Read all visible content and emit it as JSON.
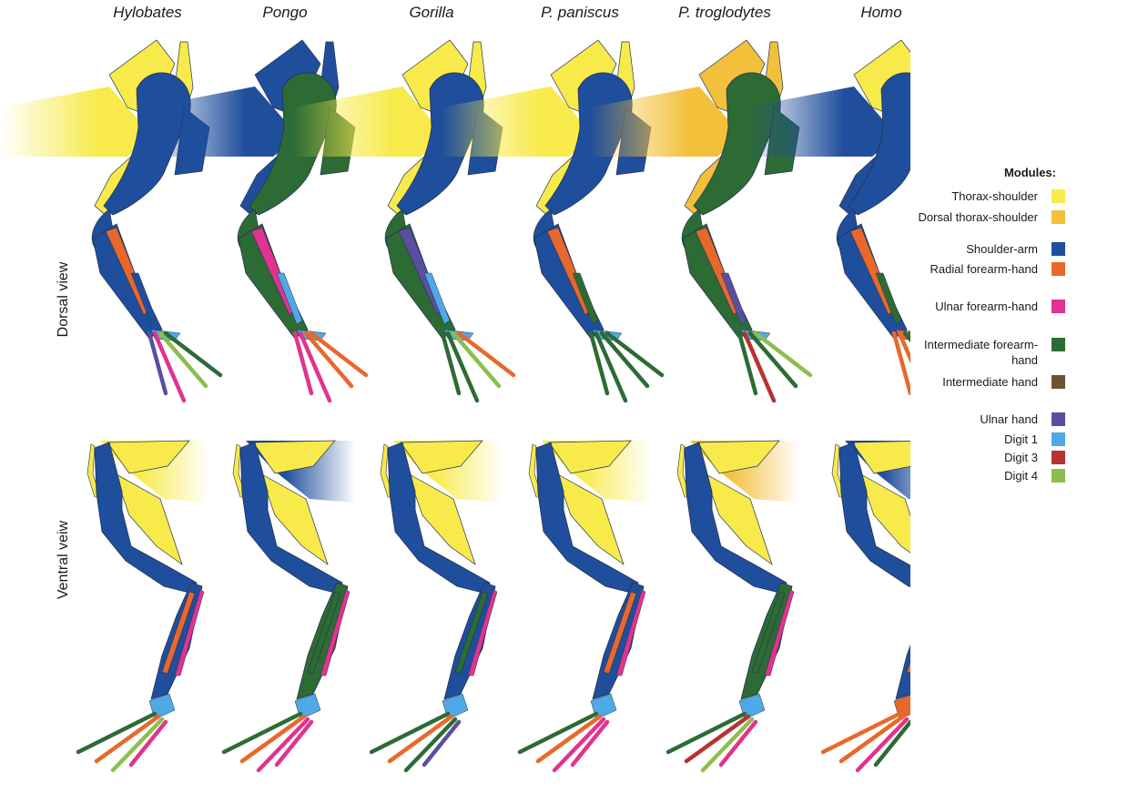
{
  "columns": [
    "Hylobates",
    "Pongo",
    "Gorilla",
    "P. paniscus",
    "P. troglodytes",
    "Homo"
  ],
  "rows": [
    "Dorsal view",
    "Ventral veiw"
  ],
  "legend": {
    "title": "Modules:",
    "items": [
      {
        "label": "Thorax-shoulder",
        "color": "#f7ea4a"
      },
      {
        "label": "Dorsal thorax-shoulder",
        "color": "#f3c03c"
      },
      {
        "label": "Shoulder-arm",
        "color": "#1f4e9c"
      },
      {
        "label": "Radial forearm-hand",
        "color": "#e8682c"
      },
      {
        "label": "Ulnar forearm-hand",
        "color": "#e0338f"
      },
      {
        "label": "Intermediate forearm-hand",
        "color": "#2d6b35"
      },
      {
        "label": "Intermediate hand",
        "color": "#6b5233"
      },
      {
        "label": "Ulnar hand",
        "color": "#5a4f9e"
      },
      {
        "label": "Digit 1",
        "color": "#4fa9e6"
      },
      {
        "label": "Digit 3",
        "color": "#b83232"
      },
      {
        "label": "Digit 4",
        "color": "#8dbd4f"
      }
    ]
  },
  "specimens": {
    "dorsal": [
      {
        "top": "#f7ea4a",
        "back": "#f7ea4a",
        "upper": "#1f4e9c",
        "forearm": "#1f4e9c",
        "stripe": "#e8682c",
        "stripe2": "#1f4e9c",
        "d1": "#4fa9e6",
        "digits": [
          "#5a4f9e",
          "#e0338f",
          "#8dbd4f",
          "#2d6b35"
        ]
      },
      {
        "top": "#1f4e9c",
        "back": "#1f4e9c",
        "upper": "#2d6b35",
        "forearm": "#2d6b35",
        "stripe": "#e0338f",
        "stripe2": "#4fa9e6",
        "d1": "#4fa9e6",
        "digits": [
          "#e0338f",
          "#e0338f",
          "#e8682c",
          "#e8682c"
        ]
      },
      {
        "top": "#f7ea4a",
        "back": "#f7ea4a",
        "upper": "#1f4e9c",
        "forearm": "#2d6b35",
        "stripe": "#5a4f9e",
        "stripe2": "#4fa9e6",
        "d1": "#4fa9e6",
        "digits": [
          "#2d6b35",
          "#2d6b35",
          "#8dbd4f",
          "#e8682c"
        ]
      },
      {
        "top": "#f7ea4a",
        "back": "#f7ea4a",
        "upper": "#1f4e9c",
        "forearm": "#1f4e9c",
        "stripe": "#e8682c",
        "stripe2": "#2d6b35",
        "d1": "#4fa9e6",
        "digits": [
          "#2d6b35",
          "#2d6b35",
          "#2d6b35",
          "#2d6b35"
        ]
      },
      {
        "top": "#f3c03c",
        "back": "#f3c03c",
        "upper": "#2d6b35",
        "forearm": "#2d6b35",
        "stripe": "#e8682c",
        "stripe2": "#5a4f9e",
        "d1": "#4fa9e6",
        "digits": [
          "#2d6b35",
          "#b83232",
          "#2d6b35",
          "#8dbd4f"
        ]
      },
      {
        "top": "#f7ea4a",
        "back": "#1f4e9c",
        "upper": "#1f4e9c",
        "forearm": "#1f4e9c",
        "stripe": "#e8682c",
        "stripe2": "#2d6b35",
        "d1": "#e8682c",
        "digits": [
          "#e8682c",
          "#e8682c",
          "#2d6b35",
          "#2d6b35"
        ]
      }
    ],
    "ventral": [
      {
        "top": "#f7ea4a",
        "back": "#f7ea4a",
        "upper": "#1f4e9c",
        "forearm": "#1f4e9c",
        "stripe": "#e8682c",
        "stripe2": "#e0338f",
        "d1": "#4fa9e6",
        "digits": [
          "#2d6b35",
          "#e8682c",
          "#8dbd4f",
          "#e0338f"
        ]
      },
      {
        "top": "#f7ea4a",
        "back": "#1f4e9c",
        "upper": "#1f4e9c",
        "forearm": "#2d6b35",
        "stripe": "#2d6b35",
        "stripe2": "#e0338f",
        "d1": "#4fa9e6",
        "digits": [
          "#2d6b35",
          "#e8682c",
          "#e0338f",
          "#e0338f"
        ]
      },
      {
        "top": "#f7ea4a",
        "back": "#f7ea4a",
        "upper": "#1f4e9c",
        "forearm": "#1f4e9c",
        "stripe": "#2d6b35",
        "stripe2": "#e0338f",
        "d1": "#4fa9e6",
        "digits": [
          "#2d6b35",
          "#e8682c",
          "#2d6b35",
          "#5a4f9e"
        ]
      },
      {
        "top": "#f7ea4a",
        "back": "#f7ea4a",
        "upper": "#1f4e9c",
        "forearm": "#1f4e9c",
        "stripe": "#e8682c",
        "stripe2": "#e0338f",
        "d1": "#4fa9e6",
        "digits": [
          "#2d6b35",
          "#e8682c",
          "#e0338f",
          "#e0338f"
        ]
      },
      {
        "top": "#f7ea4a",
        "back": "#f3c03c",
        "upper": "#1f4e9c",
        "forearm": "#2d6b35",
        "stripe": "#2d6b35",
        "stripe2": "#e0338f",
        "d1": "#4fa9e6",
        "digits": [
          "#2d6b35",
          "#b83232",
          "#8dbd4f",
          "#e0338f"
        ]
      },
      {
        "top": "#f7ea4a",
        "back": "#1f4e9c",
        "upper": "#1f4e9c",
        "forearm": "#1f4e9c",
        "stripe": "#e8682c",
        "stripe2": "#e0338f",
        "d1": "#e8682c",
        "digits": [
          "#e8682c",
          "#e8682c",
          "#e0338f",
          "#2d6b35"
        ]
      }
    ]
  }
}
